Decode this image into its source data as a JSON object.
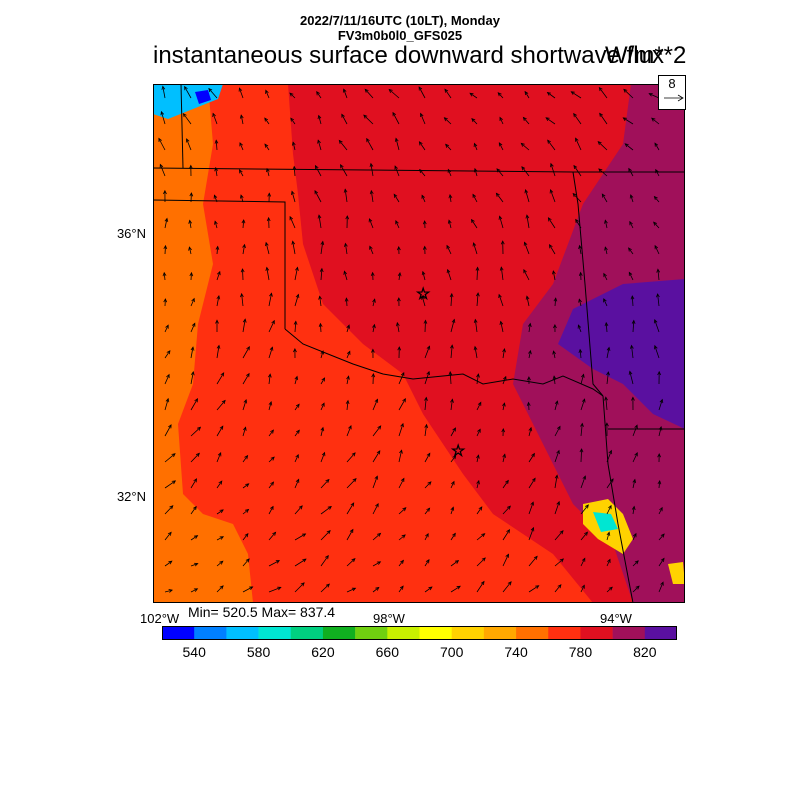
{
  "header": {
    "line1": "2022/7/11/16UTC (10LT), Monday",
    "line2": "FV3m0b0l0_GFS025"
  },
  "title": "instantaneous surface downward shortwave flux",
  "units": "W/m**2",
  "vector_ref": {
    "value": "8"
  },
  "lat_labels": [
    "36°N",
    "32°N"
  ],
  "lon_labels": [
    "102°W",
    "98°W",
    "94°W"
  ],
  "stats": {
    "text": "Min= 520.5 Max= 837.4"
  },
  "colorbar": {
    "colors": [
      "#0000ff",
      "#0080ff",
      "#00bfff",
      "#00e6d2",
      "#00d080",
      "#10b020",
      "#70d010",
      "#c8f000",
      "#ffff00",
      "#ffd200",
      "#ffa800",
      "#ff7000",
      "#ff3010",
      "#e01020",
      "#a0105a",
      "#5a10a0"
    ],
    "tick_labels": [
      "540",
      "580",
      "620",
      "660",
      "700",
      "740",
      "780",
      "820"
    ]
  },
  "map": {
    "colors": {
      "orange": "#ff7000",
      "red_orange": "#ff3010",
      "red": "#e01020",
      "magenta": "#a0105a",
      "purple": "#5a10a0"
    }
  }
}
